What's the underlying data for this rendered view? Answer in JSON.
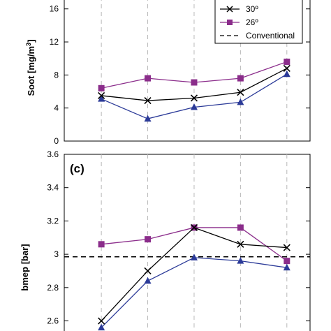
{
  "colors": {
    "series_30": "#000000",
    "series_26": "#8b2d8b",
    "series_triangle": "#2b3a98",
    "conventional": "#000000",
    "grid": "#b8b8b8"
  },
  "legend": {
    "position": "top-right",
    "entries": [
      {
        "label": "30º",
        "marker": "x-mark",
        "line": "solid",
        "color": "#000000"
      },
      {
        "label": "26º",
        "marker": "square",
        "line": "solid",
        "color": "#8b2d8b"
      },
      {
        "label": "Conventional",
        "marker": "none",
        "line": "dashed",
        "color": "#000000"
      }
    ]
  },
  "chart_data": [
    {
      "type": "line",
      "panel_label": "",
      "ylabel": "Soot [mg/m³]",
      "ylabel_base": "Soot [mg/m",
      "ylabel_sup": "3",
      "ylabel_end": "]",
      "x": [
        1,
        2,
        3,
        4,
        5
      ],
      "xlim": [
        0.2,
        5.5
      ],
      "ylim": [
        0,
        17.5
      ],
      "yticks": [
        0,
        4,
        8,
        12,
        16
      ],
      "ytick_labels": [
        "0",
        "4",
        "8",
        "12",
        "16"
      ],
      "grid": "vertical-dashed",
      "series": [
        {
          "name": "30º",
          "marker": "x-mark",
          "color": "#000000",
          "values": [
            5.5,
            4.9,
            5.2,
            5.9,
            8.8
          ]
        },
        {
          "name": "26º",
          "marker": "square",
          "color": "#8b2d8b",
          "values": [
            6.4,
            7.6,
            7.1,
            7.6,
            9.6
          ]
        },
        {
          "name": "",
          "marker": "triangle",
          "color": "#2b3a98",
          "values": [
            5.1,
            2.7,
            4.1,
            4.7,
            8.1
          ]
        }
      ]
    },
    {
      "type": "line",
      "panel_label": "(c)",
      "ylabel": "bmep [bar]",
      "x": [
        1,
        2,
        3,
        4,
        5
      ],
      "xlim": [
        0.2,
        5.5
      ],
      "ylim": [
        2.51,
        3.6
      ],
      "yticks": [
        2.6,
        2.8,
        3.0,
        3.2,
        3.4,
        3.6
      ],
      "ytick_labels": [
        "2.6",
        "2.8",
        "3",
        "3.2",
        "3.4",
        "3.6"
      ],
      "grid": "vertical-dashed",
      "reference_line": {
        "name": "Conventional",
        "value": 2.985
      },
      "series": [
        {
          "name": "30º",
          "marker": "x-mark",
          "color": "#000000",
          "values": [
            2.6,
            2.9,
            3.16,
            3.06,
            3.04
          ]
        },
        {
          "name": "26º",
          "marker": "square",
          "color": "#8b2d8b",
          "values": [
            3.06,
            3.09,
            3.16,
            3.16,
            2.96
          ]
        },
        {
          "name": "",
          "marker": "triangle",
          "color": "#2b3a98",
          "values": [
            2.56,
            2.84,
            2.98,
            2.96,
            2.92
          ]
        }
      ]
    }
  ]
}
